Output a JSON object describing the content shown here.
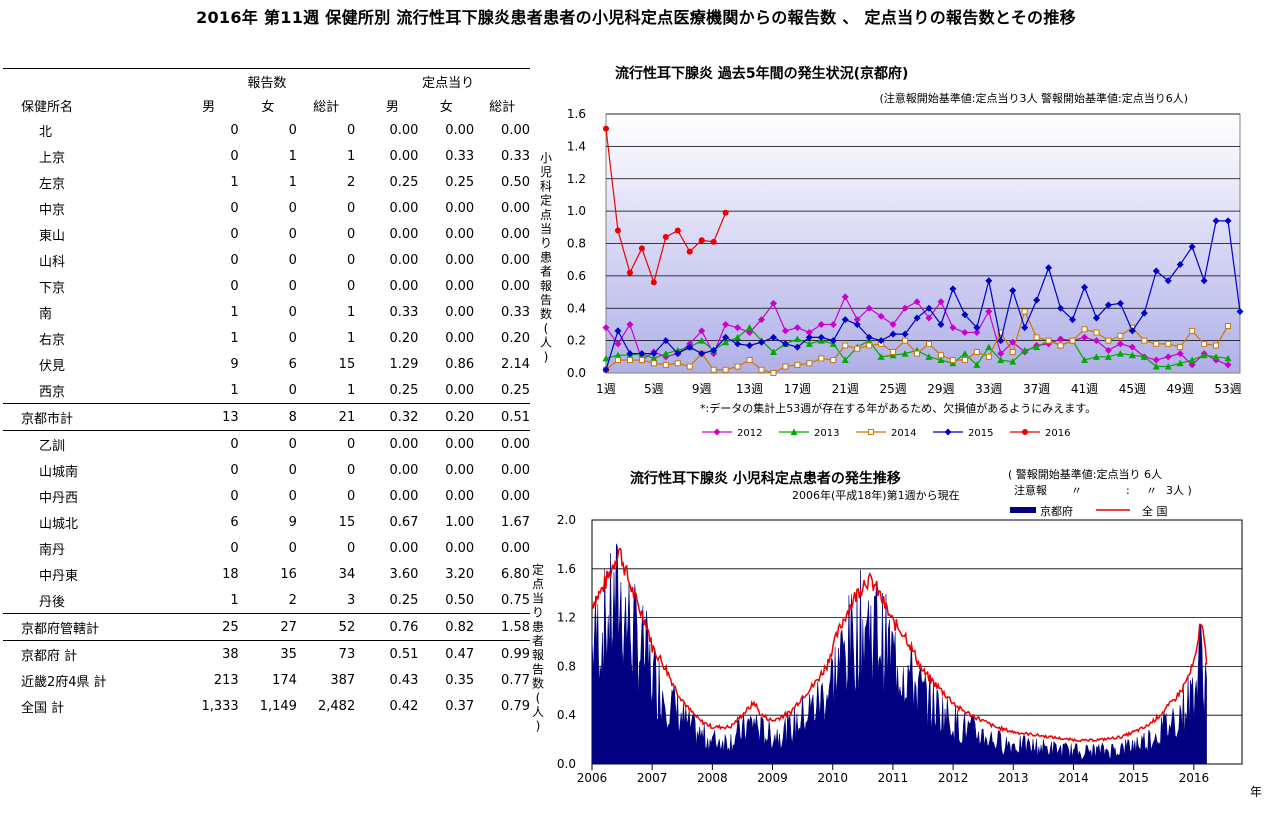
{
  "page_title": "2016年 第11週 保健所別 流行性耳下腺炎患者患者の小児科定点医療機関からの報告数 、 定点当りの報告数とその推移",
  "table": {
    "group_headers": {
      "reports": "報告数",
      "per_sentinel": "定点当り"
    },
    "col_headers": [
      "保健所名",
      "男",
      "女",
      "総計",
      "男",
      "女",
      "総計"
    ],
    "rows": [
      {
        "name": "北",
        "m": "0",
        "f": "0",
        "t": "0",
        "pm": "0.00",
        "pf": "0.00",
        "pt": "0.00",
        "style": "indent"
      },
      {
        "name": "上京",
        "m": "0",
        "f": "1",
        "t": "1",
        "pm": "0.00",
        "pf": "0.33",
        "pt": "0.33",
        "style": "indent"
      },
      {
        "name": "左京",
        "m": "1",
        "f": "1",
        "t": "2",
        "pm": "0.25",
        "pf": "0.25",
        "pt": "0.50",
        "style": "indent"
      },
      {
        "name": "中京",
        "m": "0",
        "f": "0",
        "t": "0",
        "pm": "0.00",
        "pf": "0.00",
        "pt": "0.00",
        "style": "indent"
      },
      {
        "name": "東山",
        "m": "0",
        "f": "0",
        "t": "0",
        "pm": "0.00",
        "pf": "0.00",
        "pt": "0.00",
        "style": "indent"
      },
      {
        "name": "山科",
        "m": "0",
        "f": "0",
        "t": "0",
        "pm": "0.00",
        "pf": "0.00",
        "pt": "0.00",
        "style": "indent"
      },
      {
        "name": "下京",
        "m": "0",
        "f": "0",
        "t": "0",
        "pm": "0.00",
        "pf": "0.00",
        "pt": "0.00",
        "style": "indent"
      },
      {
        "name": "南",
        "m": "1",
        "f": "0",
        "t": "1",
        "pm": "0.33",
        "pf": "0.00",
        "pt": "0.33",
        "style": "indent"
      },
      {
        "name": "右京",
        "m": "1",
        "f": "0",
        "t": "1",
        "pm": "0.20",
        "pf": "0.00",
        "pt": "0.20",
        "style": "indent"
      },
      {
        "name": "伏見",
        "m": "9",
        "f": "6",
        "t": "15",
        "pm": "1.29",
        "pf": "0.86",
        "pt": "2.14",
        "style": "indent"
      },
      {
        "name": "西京",
        "m": "1",
        "f": "0",
        "t": "1",
        "pm": "0.25",
        "pf": "0.00",
        "pt": "0.25",
        "style": "indent"
      },
      {
        "name": "京都市計",
        "m": "13",
        "f": "8",
        "t": "21",
        "pm": "0.32",
        "pf": "0.20",
        "pt": "0.51",
        "style": "left",
        "line": "both"
      },
      {
        "name": "乙訓",
        "m": "0",
        "f": "0",
        "t": "0",
        "pm": "0.00",
        "pf": "0.00",
        "pt": "0.00",
        "style": "indent"
      },
      {
        "name": "山城南",
        "m": "0",
        "f": "0",
        "t": "0",
        "pm": "0.00",
        "pf": "0.00",
        "pt": "0.00",
        "style": "indent"
      },
      {
        "name": "中丹西",
        "m": "0",
        "f": "0",
        "t": "0",
        "pm": "0.00",
        "pf": "0.00",
        "pt": "0.00",
        "style": "indent"
      },
      {
        "name": "山城北",
        "m": "6",
        "f": "9",
        "t": "15",
        "pm": "0.67",
        "pf": "1.00",
        "pt": "1.67",
        "style": "indent"
      },
      {
        "name": "南丹",
        "m": "0",
        "f": "0",
        "t": "0",
        "pm": "0.00",
        "pf": "0.00",
        "pt": "0.00",
        "style": "indent"
      },
      {
        "name": "中丹東",
        "m": "18",
        "f": "16",
        "t": "34",
        "pm": "3.60",
        "pf": "3.20",
        "pt": "6.80",
        "style": "indent"
      },
      {
        "name": "丹後",
        "m": "1",
        "f": "2",
        "t": "3",
        "pm": "0.25",
        "pf": "0.50",
        "pt": "0.75",
        "style": "indent"
      },
      {
        "name": "京都府管轄計",
        "m": "25",
        "f": "27",
        "t": "52",
        "pm": "0.76",
        "pf": "0.82",
        "pt": "1.58",
        "style": "left",
        "line": "both"
      },
      {
        "name": "京都府 計",
        "m": "38",
        "f": "35",
        "t": "73",
        "pm": "0.51",
        "pf": "0.47",
        "pt": "0.99",
        "style": "left"
      },
      {
        "name": "近畿2府4県 計",
        "m": "213",
        "f": "174",
        "t": "387",
        "pm": "0.43",
        "pf": "0.35",
        "pt": "0.77",
        "style": "left"
      },
      {
        "name": "全国 計",
        "m": "1,333",
        "f": "1,149",
        "t": "2,482",
        "pm": "0.42",
        "pf": "0.37",
        "pt": "0.79",
        "style": "left"
      }
    ]
  },
  "chart_data": [
    {
      "type": "line",
      "title": "流行性耳下腺炎 過去5年間の発生状況(京都府)",
      "subtitle": "(注意報開始基準値:定点当り3人 警報開始基準値:定点当り6人)",
      "ylabel": "小児科定点当り患者報告数(人)",
      "note": "*:データの集計上53週が存在する年があるため、欠損値があるようにみえます。",
      "ylim": [
        0,
        1.6
      ],
      "yticks": [
        "0.0",
        "0.2",
        "0.4",
        "0.6",
        "0.8",
        "1.0",
        "1.2",
        "1.4",
        "1.6"
      ],
      "xticks": [
        "1週",
        "5週",
        "9週",
        "13週",
        "17週",
        "21週",
        "25週",
        "29週",
        "33週",
        "37週",
        "41週",
        "45週",
        "49週",
        "53週"
      ],
      "legend": "bottom",
      "series": [
        {
          "name": "2012",
          "color": "#cc00cc",
          "marker": "diamond",
          "values": [
            0.28,
            0.18,
            0.3,
            0.08,
            0.13,
            0.1,
            0.12,
            0.18,
            0.26,
            0.12,
            0.3,
            0.28,
            0.25,
            0.33,
            0.43,
            0.26,
            0.28,
            0.25,
            0.3,
            0.3,
            0.47,
            0.33,
            0.4,
            0.35,
            0.3,
            0.4,
            0.44,
            0.34,
            0.44,
            0.28,
            0.25,
            0.25,
            0.38,
            0.12,
            0.19,
            0.13,
            0.17,
            0.18,
            0.21,
            0.2,
            0.22,
            0.2,
            0.14,
            0.18,
            0.16,
            0.1,
            0.08,
            0.1,
            0.12,
            0.05,
            0.12,
            0.08,
            0.05
          ]
        },
        {
          "name": "2013",
          "color": "#00aa00",
          "marker": "triangle",
          "values": [
            0.09,
            0.11,
            0.11,
            0.12,
            0.09,
            0.12,
            0.14,
            0.16,
            0.2,
            0.14,
            0.19,
            0.22,
            0.28,
            0.2,
            0.13,
            0.18,
            0.21,
            0.18,
            0.2,
            0.18,
            0.08,
            0.16,
            0.2,
            0.1,
            0.11,
            0.12,
            0.14,
            0.1,
            0.08,
            0.06,
            0.12,
            0.05,
            0.16,
            0.08,
            0.07,
            0.14,
            0.16,
            0.2,
            0.17,
            0.2,
            0.08,
            0.1,
            0.1,
            0.12,
            0.11,
            0.1,
            0.04,
            0.04,
            0.06,
            0.08,
            0.11,
            0.1,
            0.09
          ]
        },
        {
          "name": "2014",
          "color": "#cc7700",
          "marker": "square",
          "values": [
            0.02,
            0.08,
            0.08,
            0.08,
            0.06,
            0.05,
            0.06,
            0.04,
            0.12,
            0.02,
            0.02,
            0.04,
            0.08,
            0.02,
            0.0,
            0.04,
            0.05,
            0.06,
            0.09,
            0.08,
            0.17,
            0.15,
            0.17,
            0.18,
            0.13,
            0.2,
            0.12,
            0.18,
            0.11,
            0.08,
            0.08,
            0.13,
            0.1,
            0.25,
            0.13,
            0.38,
            0.22,
            0.2,
            0.17,
            0.2,
            0.27,
            0.25,
            0.2,
            0.23,
            0.28,
            0.2,
            0.18,
            0.18,
            0.16,
            0.26,
            0.18,
            0.17,
            0.29
          ]
        },
        {
          "name": "2015",
          "color": "#0000cc",
          "marker": "diamond",
          "values": [
            0.02,
            0.26,
            0.12,
            0.12,
            0.12,
            0.2,
            0.12,
            0.16,
            0.12,
            0.14,
            0.22,
            0.18,
            0.17,
            0.19,
            0.22,
            0.18,
            0.16,
            0.22,
            0.22,
            0.2,
            0.33,
            0.3,
            0.22,
            0.2,
            0.24,
            0.24,
            0.34,
            0.4,
            0.3,
            0.52,
            0.36,
            0.28,
            0.57,
            0.2,
            0.51,
            0.28,
            0.45,
            0.65,
            0.4,
            0.33,
            0.53,
            0.34,
            0.42,
            0.43,
            0.26,
            0.37,
            0.63,
            0.57,
            0.67,
            0.78,
            0.57,
            0.94,
            0.94,
            0.38
          ]
        },
        {
          "name": "2016",
          "color": "#ee0000",
          "marker": "circle",
          "values": [
            1.51,
            0.88,
            0.62,
            0.77,
            0.56,
            0.84,
            0.88,
            0.75,
            0.82,
            0.81,
            0.99
          ]
        }
      ]
    },
    {
      "type": "area",
      "title": "流行性耳下腺炎 小児科定点患者の発生推移",
      "subtitle": "2006年(平成18年)第1週から現在",
      "threshold_note_1": "( 警報開始基準値:定点当り 6人",
      "threshold_note_2a": "注意報",
      "threshold_note_2b": "〃",
      "threshold_note_2c": ":",
      "threshold_note_2d": "〃",
      "threshold_note_2e": "3人 )",
      "ylabel": "定点当り患者報告数(人)",
      "xlabel": "年",
      "ylim": [
        0,
        2.0
      ],
      "yticks": [
        "0.0",
        "0.4",
        "0.8",
        "1.2",
        "1.6",
        "2.0"
      ],
      "xticks": [
        "2006",
        "2007",
        "2008",
        "2009",
        "2010",
        "2011",
        "2012",
        "2013",
        "2014",
        "2015",
        "2016"
      ],
      "legend": "top",
      "series": [
        {
          "name": "京都府",
          "color": "#000080",
          "style": "area"
        },
        {
          "name": "全 国",
          "color": "#ee0000",
          "style": "line",
          "anchors": [
            [
              2006.0,
              1.3
            ],
            [
              2006.15,
              1.4
            ],
            [
              2006.3,
              1.55
            ],
            [
              2006.45,
              1.75
            ],
            [
              2006.6,
              1.5
            ],
            [
              2006.75,
              1.3
            ],
            [
              2006.9,
              1.15
            ],
            [
              2007.0,
              0.95
            ],
            [
              2007.2,
              0.8
            ],
            [
              2007.4,
              0.6
            ],
            [
              2007.6,
              0.45
            ],
            [
              2007.8,
              0.35
            ],
            [
              2008.0,
              0.3
            ],
            [
              2008.3,
              0.3
            ],
            [
              2008.5,
              0.4
            ],
            [
              2008.7,
              0.5
            ],
            [
              2008.8,
              0.4
            ],
            [
              2009.0,
              0.35
            ],
            [
              2009.3,
              0.42
            ],
            [
              2009.5,
              0.55
            ],
            [
              2009.7,
              0.65
            ],
            [
              2009.9,
              0.8
            ],
            [
              2010.0,
              0.95
            ],
            [
              2010.2,
              1.2
            ],
            [
              2010.4,
              1.38
            ],
            [
              2010.55,
              1.5
            ],
            [
              2010.7,
              1.45
            ],
            [
              2010.85,
              1.3
            ],
            [
              2011.0,
              1.15
            ],
            [
              2011.2,
              1.05
            ],
            [
              2011.35,
              0.9
            ],
            [
              2011.5,
              0.75
            ],
            [
              2011.7,
              0.65
            ],
            [
              2011.9,
              0.55
            ],
            [
              2012.1,
              0.45
            ],
            [
              2012.3,
              0.4
            ],
            [
              2012.5,
              0.35
            ],
            [
              2012.7,
              0.3
            ],
            [
              2013.0,
              0.26
            ],
            [
              2013.3,
              0.24
            ],
            [
              2013.6,
              0.22
            ],
            [
              2013.9,
              0.2
            ],
            [
              2014.2,
              0.19
            ],
            [
              2014.5,
              0.2
            ],
            [
              2014.8,
              0.22
            ],
            [
              2015.0,
              0.26
            ],
            [
              2015.2,
              0.3
            ],
            [
              2015.4,
              0.38
            ],
            [
              2015.6,
              0.48
            ],
            [
              2015.8,
              0.6
            ],
            [
              2015.95,
              0.75
            ],
            [
              2016.05,
              0.9
            ],
            [
              2016.12,
              1.2
            ],
            [
              2016.18,
              0.95
            ],
            [
              2016.22,
              0.82
            ]
          ]
        }
      ]
    }
  ]
}
